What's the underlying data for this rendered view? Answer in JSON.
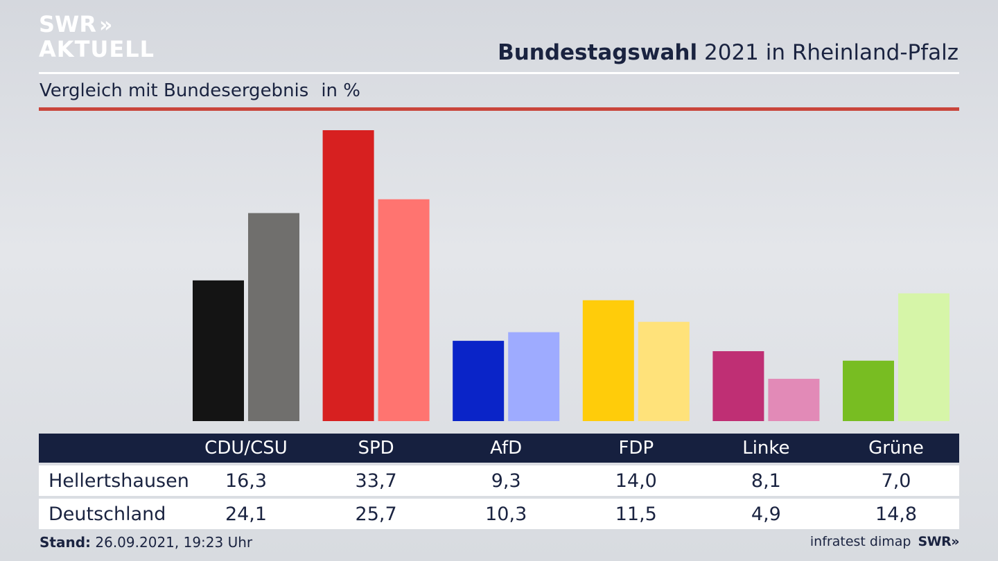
{
  "brand": {
    "line1": "SWR",
    "chevrons": "»",
    "line2": "AKTUELL",
    "footer_logo": "SWR»"
  },
  "header": {
    "title_bold": "Bundestagswahl",
    "title_rest": "2021 in Rheinland-Pfalz",
    "subtitle": "Vergleich mit Bundesergebnis",
    "unit": "in %"
  },
  "chart_data": {
    "type": "bar",
    "title": "Bundestagswahl 2021 in Rheinland-Pfalz",
    "subtitle": "Vergleich mit Bundesergebnis",
    "ylabel": "in %",
    "ylim": [
      0,
      33.7
    ],
    "grid": false,
    "categories": [
      "CDU/CSU",
      "SPD",
      "AfD",
      "FDP",
      "Linke",
      "Grüne"
    ],
    "series": [
      {
        "name": "Hellertshausen",
        "values": [
          16.3,
          33.7,
          9.3,
          14.0,
          8.1,
          7.0
        ],
        "labels": [
          "16,3",
          "33,7",
          "9,3",
          "14,0",
          "8,1",
          "7,0"
        ],
        "colors": [
          "#141414",
          "#d72020",
          "#0a24c8",
          "#ffcc0a",
          "#bf2f74",
          "#78bd22"
        ]
      },
      {
        "name": "Deutschland",
        "values": [
          24.1,
          25.7,
          10.3,
          11.5,
          4.9,
          14.8
        ],
        "labels": [
          "24,1",
          "25,7",
          "10,3",
          "11,5",
          "4,9",
          "14,8"
        ],
        "colors": [
          "#706f6d",
          "#ff7470",
          "#9eabff",
          "#ffe27a",
          "#e28ab7",
          "#d6f5a8"
        ]
      }
    ]
  },
  "footer": {
    "stand_label": "Stand:",
    "stand_value": "26.09.2021, 19:23 Uhr",
    "source": "infratest dimap"
  }
}
